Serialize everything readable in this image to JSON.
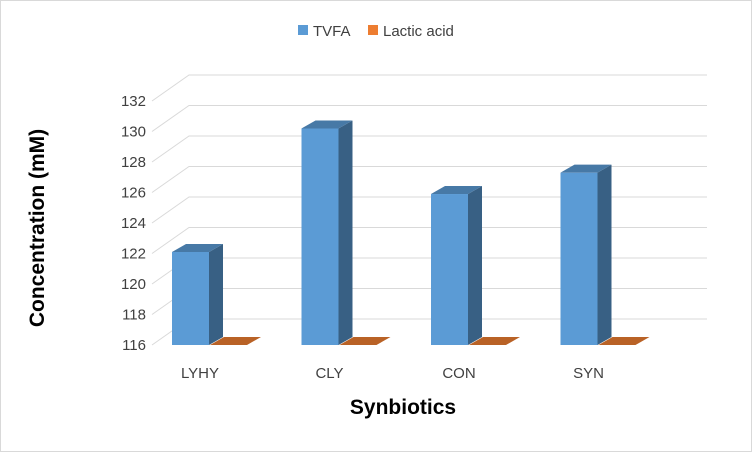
{
  "chart_data": {
    "type": "bar",
    "style": "3d-clustered-column",
    "categories": [
      "LYHY",
      "CLY",
      "CON",
      "SYN"
    ],
    "series": [
      {
        "name": "TVFA",
        "color": "#5B9BD5",
        "values": [
          122.1,
          130.2,
          125.9,
          127.3
        ]
      },
      {
        "name": "Lactic acid",
        "color": "#ED7D31",
        "values": [
          116,
          116,
          116,
          116
        ]
      }
    ],
    "title": "",
    "xlabel": "Synbiotics",
    "ylabel": "Concentration (mM)",
    "ylim": [
      116,
      132
    ],
    "yticks": [
      "116",
      "118",
      "120",
      "122",
      "124",
      "126",
      "128",
      "130",
      "132"
    ],
    "grid": true,
    "legend_position": "top"
  }
}
